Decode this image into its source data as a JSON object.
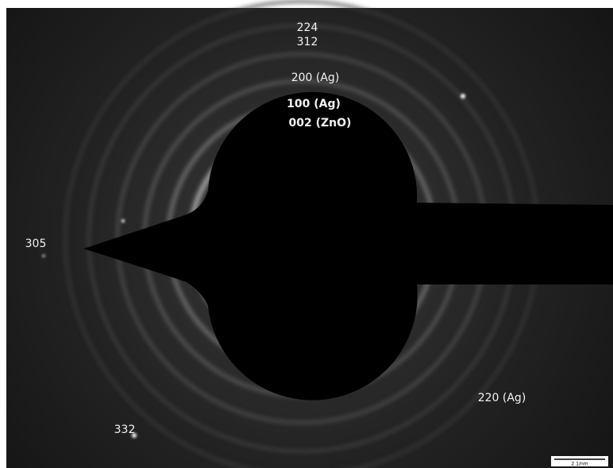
{
  "labels": [
    "224",
    "312",
    "200 (Ag)",
    "100 (Ag)",
    "002 (ZnO)",
    "305",
    "220 (Ag)",
    "332"
  ],
  "scale_bar": "2 1/nm"
}
